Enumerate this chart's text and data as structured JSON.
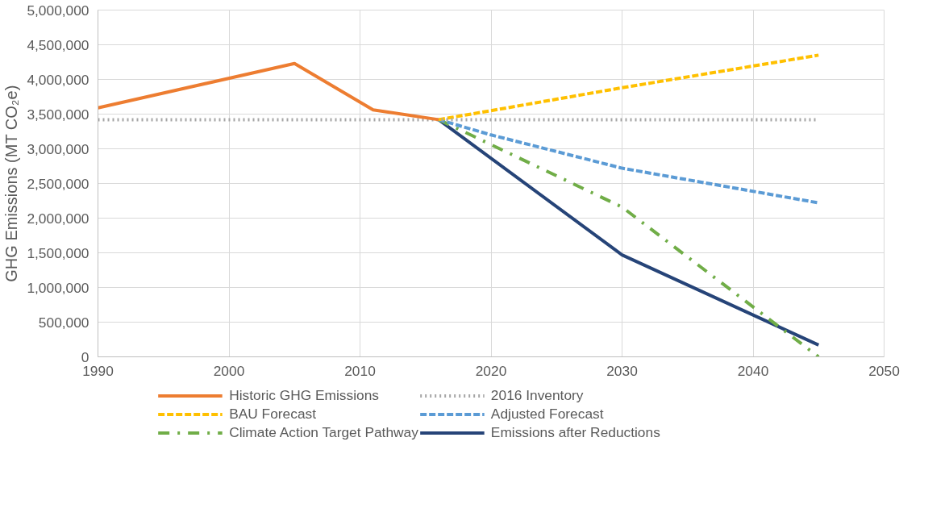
{
  "chart_data": {
    "type": "line",
    "ylabel": "GHG Emissions (MT CO₂e)",
    "xlim": [
      1990,
      2050
    ],
    "xticks": [
      1990,
      2000,
      2010,
      2020,
      2030,
      2040,
      2050
    ],
    "ylim": [
      0,
      5000000
    ],
    "yticks": [
      0,
      {
        "value": 500000,
        "label": "500,000"
      },
      {
        "value": 1000000,
        "label": "1,000,000"
      },
      {
        "value": 1500000,
        "label": "1,500,000"
      },
      {
        "value": 2000000,
        "label": "2,000,000"
      },
      {
        "value": 2500000,
        "label": "2,500,000"
      },
      {
        "value": 3000000,
        "label": "3,000,000"
      },
      {
        "value": 3500000,
        "label": "3,500,000"
      },
      {
        "value": 4000000,
        "label": "4,000,000"
      },
      {
        "value": 4500000,
        "label": "4,500,000"
      },
      {
        "value": 5000000,
        "label": "5,000,000"
      }
    ],
    "grid": true,
    "legend": "bottom",
    "marker": "none",
    "series": [
      {
        "name": "Historic GHG Emissions",
        "color": "#ed7d31",
        "line_style": "solid",
        "x": [
          1990,
          2005,
          2011,
          2016
        ],
        "values": [
          3590000,
          4230000,
          3560000,
          3420000
        ]
      },
      {
        "name": "2016 Inventory",
        "color": "#a5a5a5",
        "line_style": "dotted",
        "x": [
          1990,
          2045
        ],
        "values": [
          3420000,
          3420000
        ]
      },
      {
        "name": "BAU Forecast",
        "color": "#ffc000",
        "line_style": "dashed",
        "x": [
          2016,
          2020,
          2030,
          2045
        ],
        "values": [
          3420000,
          3550000,
          3880000,
          4350000
        ]
      },
      {
        "name": "Adjusted Forecast",
        "color": "#5b9bd5",
        "line_style": "dashed",
        "x": [
          2016,
          2020,
          2030,
          2045
        ],
        "values": [
          3420000,
          3200000,
          2720000,
          2220000
        ]
      },
      {
        "name": "Climate Action Target Pathway",
        "color": "#70ad47",
        "line_style": "dashdot",
        "x": [
          2016,
          2030,
          2045
        ],
        "values": [
          3420000,
          2160000,
          0
        ]
      },
      {
        "name": "Emissions after Reductions",
        "color": "#264478",
        "line_style": "solid",
        "x": [
          2016,
          2030,
          2045
        ],
        "values": [
          3420000,
          1470000,
          170000
        ]
      }
    ]
  }
}
